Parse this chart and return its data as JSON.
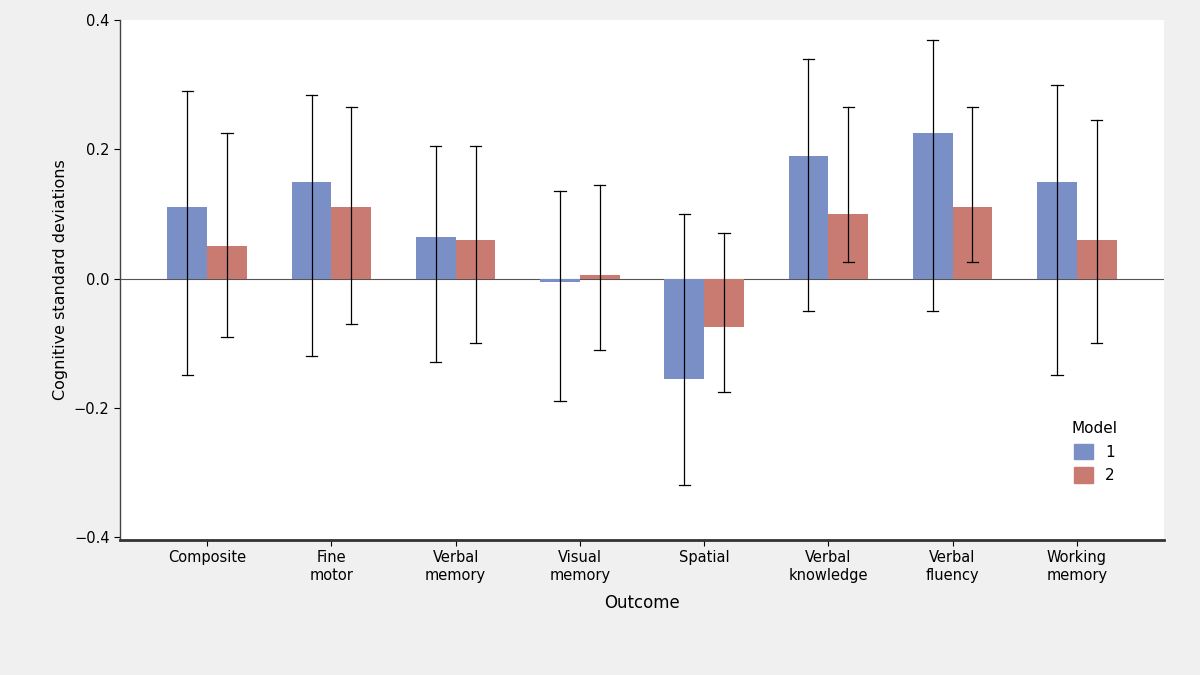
{
  "categories": [
    "Composite",
    "Fine\nmotor",
    "Verbal\nmemory",
    "Visual\nmemory",
    "Spatial",
    "Verbal\nknowledge",
    "Verbal\nfluency",
    "Working\nmemory"
  ],
  "model1_values": [
    0.11,
    0.15,
    0.065,
    -0.005,
    -0.155,
    0.19,
    0.225,
    0.15
  ],
  "model2_values": [
    0.05,
    0.11,
    0.06,
    0.005,
    -0.075,
    0.1,
    0.11,
    0.06
  ],
  "model1_ci_low": [
    -0.15,
    -0.12,
    -0.13,
    -0.19,
    -0.32,
    -0.05,
    -0.05,
    -0.15
  ],
  "model1_ci_high": [
    0.29,
    0.285,
    0.205,
    0.135,
    0.1,
    0.34,
    0.37,
    0.3
  ],
  "model2_ci_low": [
    -0.09,
    -0.07,
    -0.1,
    -0.11,
    -0.175,
    0.025,
    0.025,
    -0.1
  ],
  "model2_ci_high": [
    0.225,
    0.265,
    0.205,
    0.145,
    0.07,
    0.265,
    0.265,
    0.245
  ],
  "model1_color": "#7b8fc7",
  "model2_color": "#c97b72",
  "bar_width": 0.32,
  "ylim": [
    -0.4,
    0.4
  ],
  "yticks": [
    -0.4,
    -0.2,
    0.0,
    0.2,
    0.4
  ],
  "ylabel": "Cognitive standard deviations",
  "xlabel": "Outcome",
  "legend_title": "Model",
  "legend_labels": [
    "1",
    "2"
  ],
  "plot_bg_color": "#ffffff",
  "fig_bg_color": "#f0f0f0",
  "capsize": 0.045
}
